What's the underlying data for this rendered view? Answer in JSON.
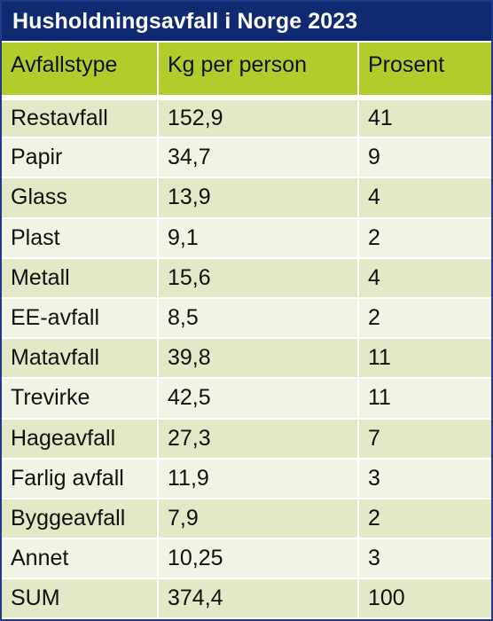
{
  "title": "Husholdningsavfall i Norge 2023",
  "columns": [
    "Avfallstype",
    "Kg per person",
    "Prosent"
  ],
  "rows": [
    [
      "Restavfall",
      "152,9",
      "41"
    ],
    [
      "Papir",
      "34,7",
      "9"
    ],
    [
      "Glass",
      "13,9",
      "4"
    ],
    [
      "Plast",
      "9,1",
      "2"
    ],
    [
      "Metall",
      "15,6",
      "4"
    ],
    [
      "EE-avfall",
      "8,5",
      "2"
    ],
    [
      "Matavfall",
      "39,8",
      "11"
    ],
    [
      "Trevirke",
      "42,5",
      "11"
    ],
    [
      "Hageavfall",
      "27,3",
      "7"
    ],
    [
      "Farlig avfall",
      "11,9",
      "3"
    ],
    [
      "Byggeavfall",
      "7,9",
      "2"
    ],
    [
      "Annet",
      "10,25",
      "3"
    ],
    [
      "SUM",
      "374,4",
      "100"
    ]
  ],
  "colors": {
    "title_bg": "#102a72",
    "header_bg": "#b2cc2b",
    "row_odd": "#e2e9c6",
    "row_even": "#f1f4e4"
  }
}
